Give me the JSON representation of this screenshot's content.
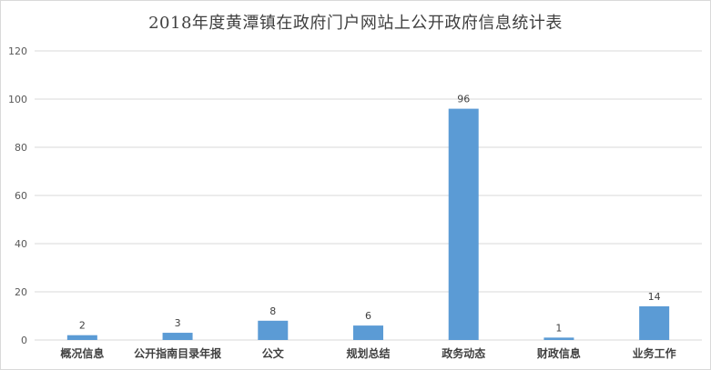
{
  "chart_data": {
    "type": "bar",
    "title": "2018年度黄潭镇在政府门户网站上公开政府信息统计表",
    "xlabel": "",
    "ylabel": "",
    "categories": [
      "概况信息",
      "公开指南目录年报",
      "公文",
      "规划总结",
      "政务动态",
      "财政信息",
      "业务工作"
    ],
    "values": [
      2,
      3,
      8,
      6,
      96,
      1,
      14
    ],
    "ylim": [
      0,
      120
    ],
    "yticks": [
      0,
      20,
      40,
      60,
      80,
      100,
      120
    ],
    "grid": true,
    "legend": "none",
    "bar_color": "#5b9bd5",
    "grid_color": "#d9d9d9"
  }
}
